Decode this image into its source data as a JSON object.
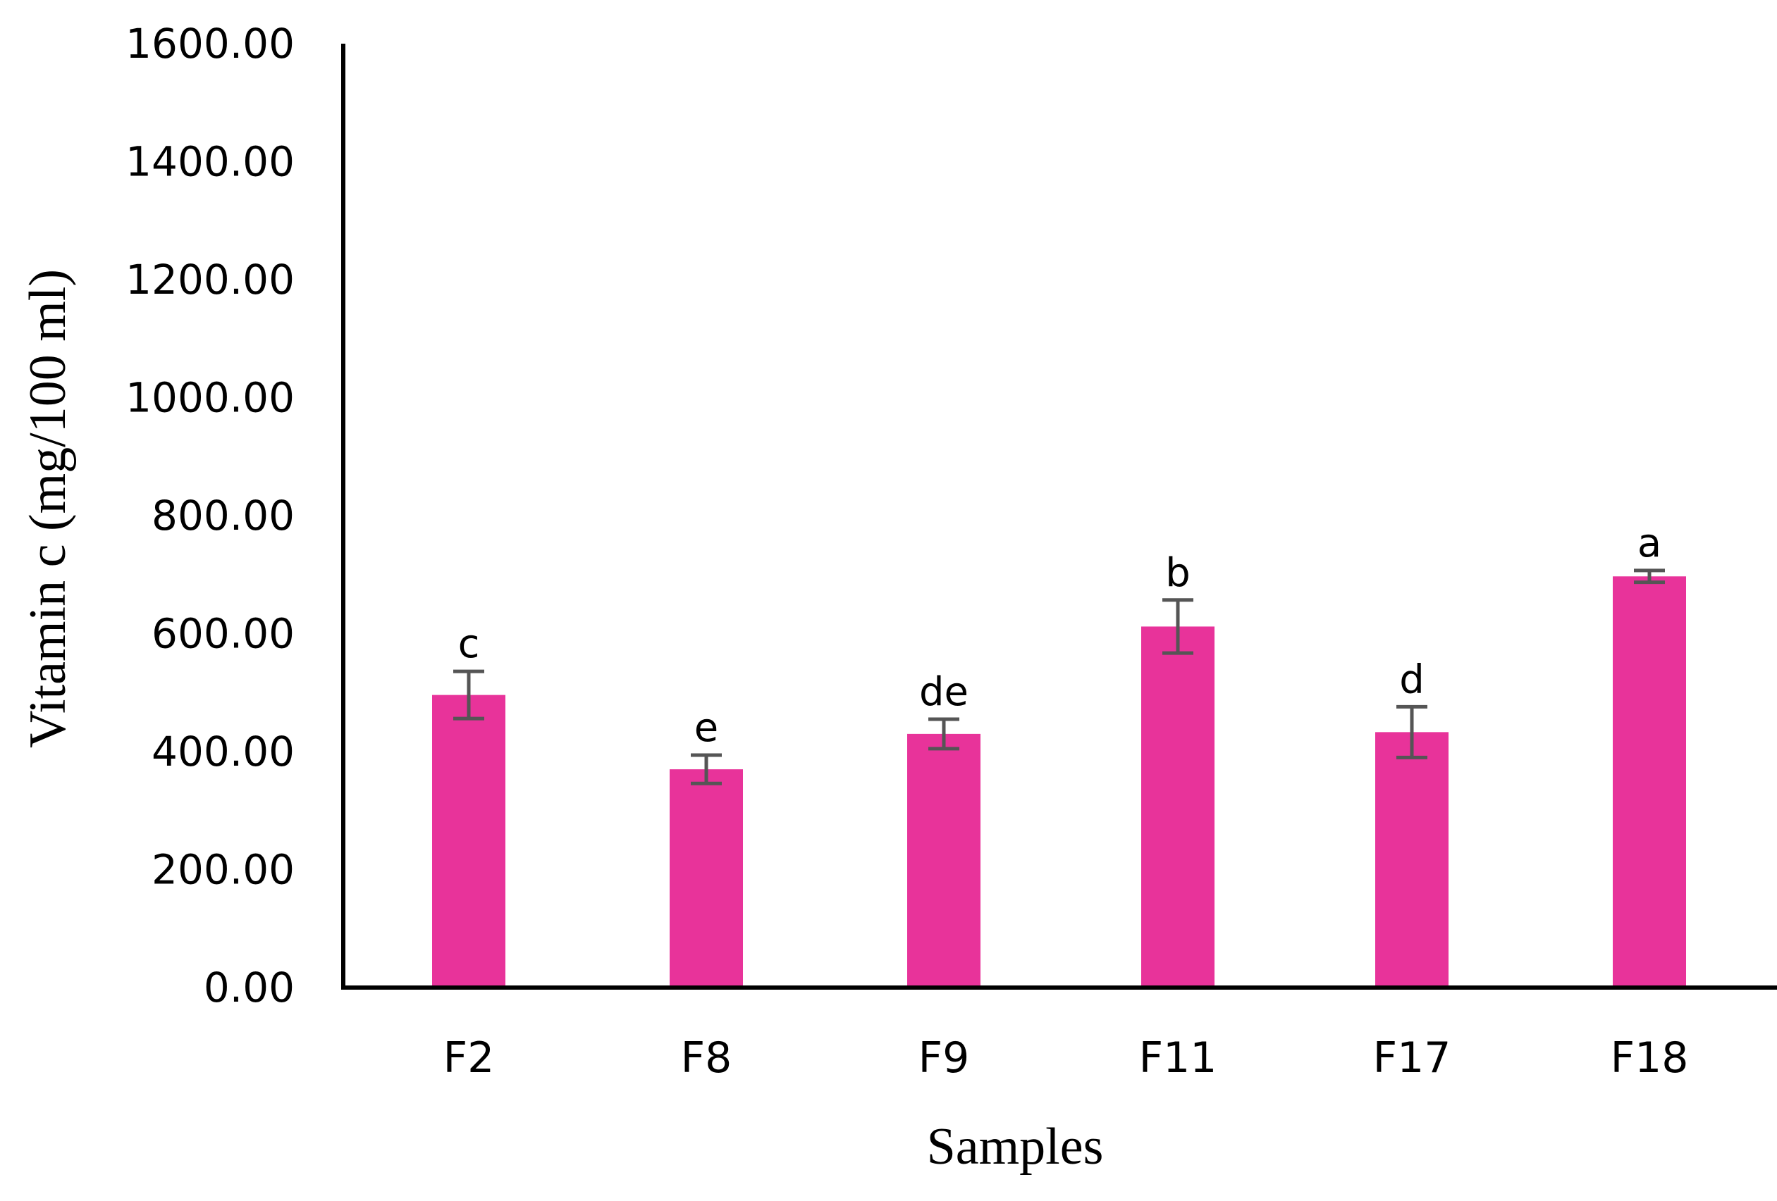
{
  "chart_data": {
    "type": "bar",
    "title": "",
    "xlabel": "Samples",
    "ylabel": "Vitamin c (mg/100 ml)",
    "ylim": [
      0,
      1600
    ],
    "yticks": [
      0,
      200,
      400,
      600,
      800,
      1000,
      1200,
      1400,
      1600
    ],
    "ytick_labels": [
      "0.00",
      "200.00",
      "400.00",
      "600.00",
      "800.00",
      "1000.00",
      "1200.00",
      "1400.00",
      "1600.00"
    ],
    "grid": false,
    "legend": "none",
    "categories": [
      "F2",
      "F8",
      "F9",
      "F11",
      "F17",
      "F18"
    ],
    "values": [
      496,
      370,
      430,
      612,
      433,
      697
    ],
    "errors": [
      40,
      24,
      25,
      45,
      43,
      10
    ],
    "significance_labels": [
      "c",
      "e",
      "de",
      "b",
      "d",
      "a"
    ],
    "bar_color": "#E8339A",
    "error_bar_color": "#555555"
  }
}
